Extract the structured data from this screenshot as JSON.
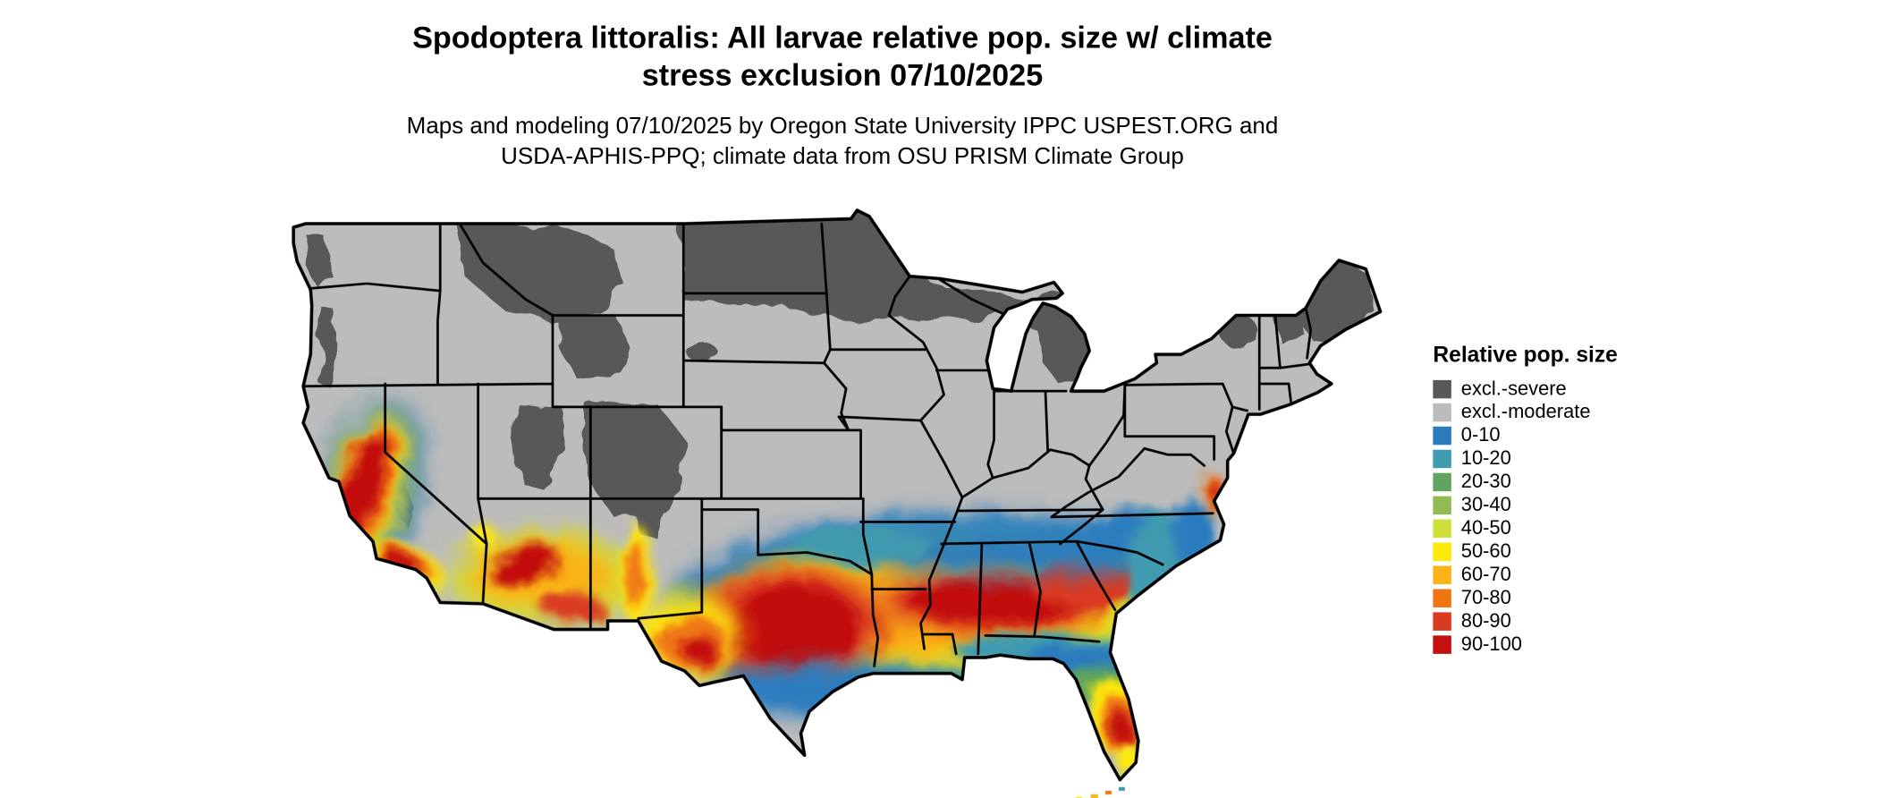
{
  "title": {
    "line1": "Spodoptera littoralis: All larvae relative pop. size w/ climate",
    "line2": "stress exclusion 07/10/2025"
  },
  "subtitle": {
    "line1": "Maps and modeling 07/10/2025 by Oregon State University IPPC USPEST.ORG and",
    "line2": "USDA-APHIS-PPQ; climate data from OSU PRISM Climate Group"
  },
  "legend": {
    "title": "Relative pop. size",
    "items": [
      {
        "label": "excl.-severe",
        "color": "#585858"
      },
      {
        "label": "excl.-moderate",
        "color": "#bcbcbc"
      },
      {
        "label": "0-10",
        "color": "#2b7cbf"
      },
      {
        "label": "10-20",
        "color": "#3f9bb0"
      },
      {
        "label": "20-30",
        "color": "#5fa55f"
      },
      {
        "label": "30-40",
        "color": "#91bb55"
      },
      {
        "label": "40-50",
        "color": "#cfe03c"
      },
      {
        "label": "50-60",
        "color": "#fee90c"
      },
      {
        "label": "60-70",
        "color": "#fbb316"
      },
      {
        "label": "70-80",
        "color": "#ef7612"
      },
      {
        "label": "80-90",
        "color": "#da3b20"
      },
      {
        "label": "90-100",
        "color": "#c30f0e"
      }
    ]
  },
  "map": {
    "land_color": "#bcbcbc",
    "border_color": "#000000",
    "background_color": "#ffffff"
  }
}
